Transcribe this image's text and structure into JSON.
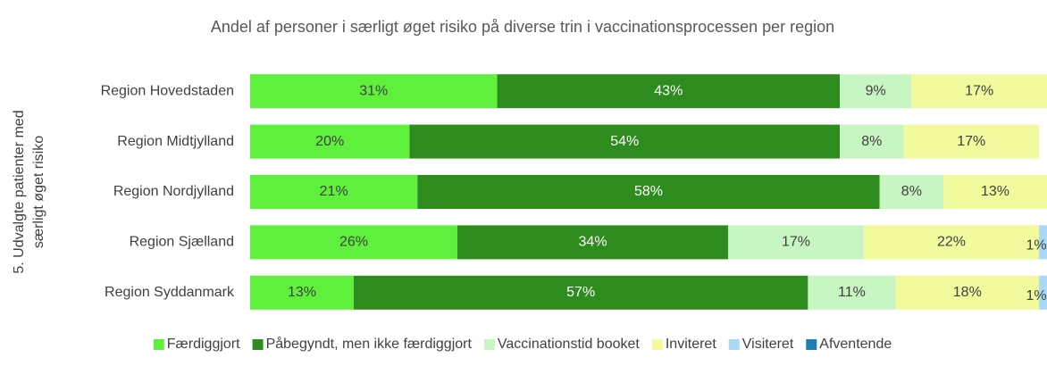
{
  "chart_data": {
    "type": "stacked_bar_horizontal_100",
    "title": "Andel af personer i særligt øget risiko på diverse trin i vaccinationsprocessen per region",
    "ylabel": [
      "5. Udvalgte patienter med",
      "særligt øget risiko"
    ],
    "categories": [
      "Region Hovedstaden",
      "Region Midtjylland",
      "Region Nordjylland",
      "Region Sjælland",
      "Region Syddanmark"
    ],
    "xlim": [
      0,
      100
    ],
    "legend": "bottom",
    "series": [
      {
        "name": "Færdiggjort",
        "color": "#5ef03c",
        "values": [
          31,
          20,
          21,
          26,
          13
        ],
        "value_labels": [
          "31%",
          "20%",
          "21%",
          "26%",
          "13%"
        ]
      },
      {
        "name": "Påbegyndt, men ikke færdiggjort",
        "color": "#2e8b1e",
        "values": [
          43,
          54,
          58,
          34,
          57
        ],
        "value_labels": [
          "43%",
          "54%",
          "58%",
          "34%",
          "57%"
        ]
      },
      {
        "name": "Vaccinationstid booket",
        "color": "#c8f6c2",
        "values": [
          9,
          8,
          8,
          17,
          11
        ],
        "value_labels": [
          "9%",
          "8%",
          "8%",
          "17%",
          "11%"
        ]
      },
      {
        "name": "Inviteret",
        "color": "#f1fb9e",
        "values": [
          17,
          17,
          13,
          22,
          18
        ],
        "value_labels": [
          "17%",
          "17%",
          "13%",
          "22%",
          "18%"
        ]
      },
      {
        "name": "Visiteret",
        "color": "#a9d9f7",
        "values": [
          null,
          null,
          null,
          1,
          1
        ],
        "value_labels": [
          null,
          null,
          null,
          "1%",
          "1%"
        ]
      },
      {
        "name": "Afventende",
        "color": "#1f7fb4",
        "values": [
          null,
          null,
          null,
          null,
          null
        ]
      }
    ]
  }
}
